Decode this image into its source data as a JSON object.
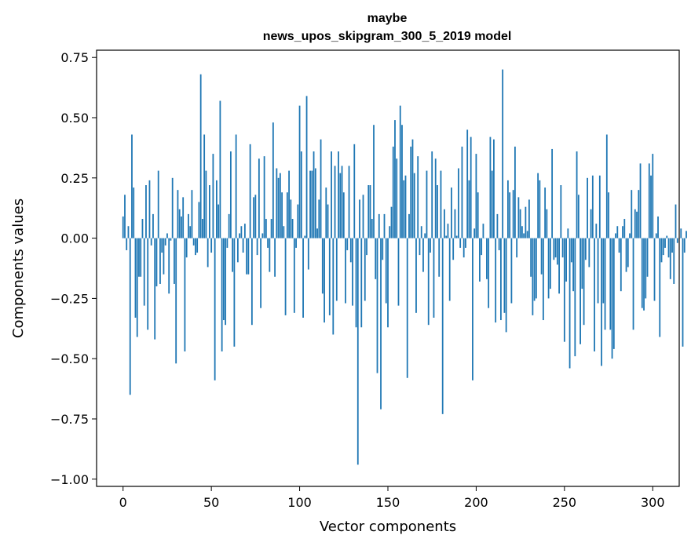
{
  "chart_data": {
    "type": "bar",
    "title": "maybe",
    "subtitle": "news_upos_skipgram_300_5_2019 model",
    "xlabel": "Vector components",
    "ylabel": "Components values",
    "xlim": [
      -15,
      315
    ],
    "ylim": [
      -1.03,
      0.78
    ],
    "xticks": [
      0,
      50,
      100,
      150,
      200,
      250,
      300
    ],
    "yticks": [
      -1.0,
      -0.75,
      -0.5,
      -0.25,
      0.0,
      0.25,
      0.5,
      0.75
    ],
    "ytick_labels": [
      "−1.00",
      "−0.75",
      "−0.50",
      "−0.25",
      "0.00",
      "0.25",
      "0.50",
      "0.75"
    ],
    "bar_color": "#1f77b4",
    "values": [
      0.09,
      0.18,
      -0.05,
      0.05,
      -0.65,
      0.43,
      0.21,
      -0.33,
      -0.41,
      -0.16,
      -0.16,
      0.08,
      -0.28,
      0.22,
      -0.38,
      0.24,
      -0.03,
      0.1,
      -0.42,
      -0.2,
      0.28,
      -0.19,
      -0.06,
      -0.15,
      -0.03,
      0.02,
      -0.23,
      -0.01,
      0.25,
      -0.19,
      -0.52,
      0.2,
      0.12,
      0.09,
      0.17,
      -0.47,
      -0.08,
      0.1,
      0.05,
      0.2,
      -0.03,
      -0.07,
      -0.06,
      0.15,
      0.68,
      0.08,
      0.43,
      0.28,
      -0.12,
      0.22,
      -0.06,
      0.35,
      -0.59,
      0.24,
      0.14,
      0.57,
      -0.47,
      -0.34,
      -0.36,
      -0.04,
      0.1,
      0.36,
      -0.14,
      -0.45,
      0.43,
      -0.1,
      0.02,
      0.05,
      -0.06,
      0.06,
      -0.15,
      -0.15,
      0.39,
      -0.36,
      0.17,
      0.18,
      -0.07,
      0.33,
      -0.29,
      0.02,
      0.34,
      0.08,
      -0.04,
      -0.14,
      0.08,
      0.48,
      -0.16,
      0.29,
      0.25,
      0.27,
      0.19,
      0.05,
      -0.32,
      0.19,
      0.28,
      0.16,
      0.08,
      -0.31,
      -0.04,
      0.14,
      0.55,
      0.36,
      -0.33,
      0.01,
      0.59,
      -0.13,
      0.28,
      0.28,
      0.36,
      0.29,
      0.04,
      0.16,
      0.41,
      -0.23,
      -0.35,
      0.21,
      0.14,
      -0.32,
      0.36,
      -0.4,
      0.3,
      -0.26,
      0.36,
      0.27,
      0.3,
      0.19,
      -0.27,
      -0.05,
      0.3,
      -0.1,
      -0.28,
      0.39,
      -0.37,
      -0.94,
      0.16,
      -0.37,
      0.18,
      -0.26,
      -0.07,
      0.22,
      0.22,
      0.08,
      0.47,
      -0.17,
      -0.56,
      0.1,
      -0.71,
      -0.09,
      0.1,
      -0.27,
      -0.37,
      0.05,
      0.13,
      0.38,
      0.49,
      0.33,
      -0.28,
      0.55,
      0.47,
      0.24,
      0.26,
      -0.58,
      0.1,
      0.38,
      0.41,
      0.27,
      -0.31,
      0.34,
      -0.07,
      0.05,
      -0.14,
      0.02,
      0.28,
      -0.36,
      -0.06,
      0.36,
      -0.33,
      0.33,
      0.22,
      -0.16,
      0.28,
      -0.73,
      0.12,
      0.01,
      0.06,
      -0.26,
      0.21,
      -0.09,
      0.12,
      0.01,
      0.29,
      -0.04,
      0.38,
      -0.08,
      -0.04,
      0.45,
      0.24,
      0.42,
      -0.59,
      0.04,
      0.35,
      0.19,
      -0.18,
      -0.07,
      0.06,
      0.0,
      -0.17,
      -0.29,
      0.42,
      0.28,
      0.41,
      -0.35,
      0.1,
      -0.05,
      -0.34,
      0.7,
      -0.31,
      -0.39,
      0.24,
      0.19,
      -0.27,
      0.2,
      0.38,
      -0.08,
      0.17,
      0.12,
      0.05,
      0.02,
      0.13,
      0.03,
      0.16,
      -0.16,
      -0.32,
      -0.26,
      -0.25,
      0.27,
      0.24,
      -0.15,
      -0.34,
      0.21,
      0.12,
      -0.25,
      -0.21,
      0.37,
      -0.09,
      -0.08,
      -0.11,
      -0.23,
      0.22,
      -0.08,
      -0.43,
      -0.18,
      0.04,
      -0.54,
      -0.1,
      -0.22,
      -0.49,
      0.36,
      0.18,
      -0.44,
      -0.21,
      -0.36,
      -0.09,
      0.25,
      -0.12,
      0.12,
      0.26,
      -0.47,
      0.06,
      -0.27,
      0.26,
      -0.53,
      -0.27,
      -0.38,
      0.43,
      0.19,
      -0.38,
      -0.5,
      -0.46,
      0.02,
      0.05,
      -0.06,
      -0.22,
      0.05,
      0.08,
      -0.14,
      -0.12,
      0.02,
      0.2,
      -0.38,
      0.12,
      0.11,
      0.2,
      0.31,
      -0.29,
      -0.3,
      -0.25,
      -0.16,
      0.31,
      0.26,
      0.35,
      -0.26,
      0.02,
      0.09,
      -0.41,
      -0.1,
      -0.07,
      -0.04,
      0.01,
      -0.08,
      -0.17,
      -0.06,
      -0.19,
      0.14,
      -0.02,
      0.0,
      0.04,
      -0.45,
      -0.06,
      0.03
    ]
  }
}
